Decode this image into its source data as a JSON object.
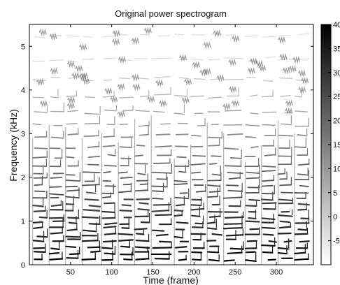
{
  "chart_data": {
    "type": "heatmap",
    "title": "Original power spectrogram",
    "xlabel": "Time (frame)",
    "ylabel": "Frequency (kHz)",
    "xlim": [
      0,
      345
    ],
    "ylim": [
      0,
      5.5
    ],
    "x_ticks": [
      50,
      100,
      150,
      200,
      250,
      300
    ],
    "y_ticks": [
      0,
      1,
      2,
      3,
      4,
      5
    ],
    "colorbar": {
      "range": [
        -10,
        40
      ],
      "ticks": [
        -5,
        0,
        5,
        10,
        15,
        20,
        25,
        30,
        35,
        40
      ],
      "colormap": "gray-reversed",
      "low_color": "#ffffff",
      "high_color": "#000000"
    },
    "phrases": [
      {
        "start": 4,
        "end": 84
      },
      {
        "start": 88,
        "end": 168
      },
      {
        "start": 176,
        "end": 258
      },
      {
        "start": 262,
        "end": 345
      }
    ],
    "note_onsets_frames": [
      4,
      24,
      44,
      64,
      88,
      108,
      128,
      148,
      176,
      196,
      216,
      236,
      262,
      282,
      302,
      322
    ],
    "harmonic_tracks_khz": [
      0.12,
      0.27,
      0.41,
      0.55,
      0.68,
      0.82,
      0.96,
      1.1,
      1.24,
      1.38,
      1.52,
      1.66,
      1.8,
      1.95,
      2.1,
      2.28,
      2.48,
      2.7,
      2.95,
      3.2,
      3.5,
      3.85,
      4.25,
      4.7,
      5.25
    ]
  }
}
